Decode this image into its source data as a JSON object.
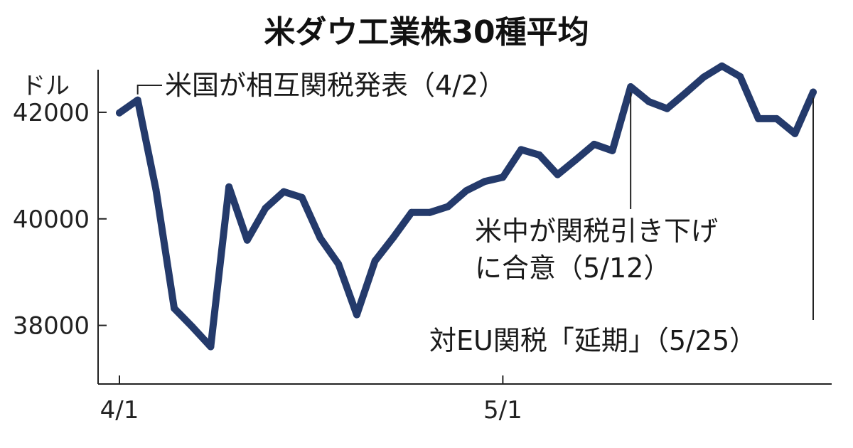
{
  "chart_data": {
    "type": "line",
    "title": "米ダウ工業株30種平均",
    "ylabel": "ドル",
    "xlabel": "",
    "ylim": [
      36900,
      42800
    ],
    "yticks": [
      38000,
      40000,
      42000
    ],
    "ytick_labels": [
      "38000",
      "40000",
      "42000"
    ],
    "xtick_labels": [
      {
        "date": "4/1",
        "index": 0
      },
      {
        "date": "5/1",
        "index": 21
      }
    ],
    "grid": false,
    "legend": "none",
    "color": "#243a6b",
    "x": [
      "4/1",
      "4/2",
      "4/3",
      "4/4",
      "4/7",
      "4/8",
      "4/9",
      "4/10",
      "4/11",
      "4/14",
      "4/15",
      "4/16",
      "4/17",
      "4/21",
      "4/22",
      "4/23",
      "4/24",
      "4/25",
      "4/28",
      "4/29",
      "4/30",
      "5/1",
      "5/2",
      "5/5",
      "5/6",
      "5/7",
      "5/8",
      "5/9",
      "5/12",
      "5/13",
      "5/14",
      "5/15",
      "5/16",
      "5/19",
      "5/20",
      "5/21",
      "5/22",
      "5/23",
      "5/26"
    ],
    "values": [
      41990,
      42230,
      40550,
      38320,
      37970,
      37600,
      40600,
      39600,
      40200,
      40510,
      40400,
      39640,
      39150,
      38200,
      39210,
      39650,
      40120,
      40120,
      40230,
      40530,
      40700,
      40780,
      41300,
      41200,
      40830,
      41110,
      41400,
      41280,
      42480,
      42200,
      42070,
      42360,
      42660,
      42870,
      42670,
      41880,
      41880,
      41600,
      42380
    ],
    "annotations": [
      {
        "text": "米国が相互関税発表（4/2）",
        "index": 1
      },
      {
        "text": "米中が関税引き下げ",
        "text2": "に合意（5/12）",
        "index": 28
      },
      {
        "text": "対EU関税「延期」（5/25）",
        "index": 38
      }
    ]
  }
}
